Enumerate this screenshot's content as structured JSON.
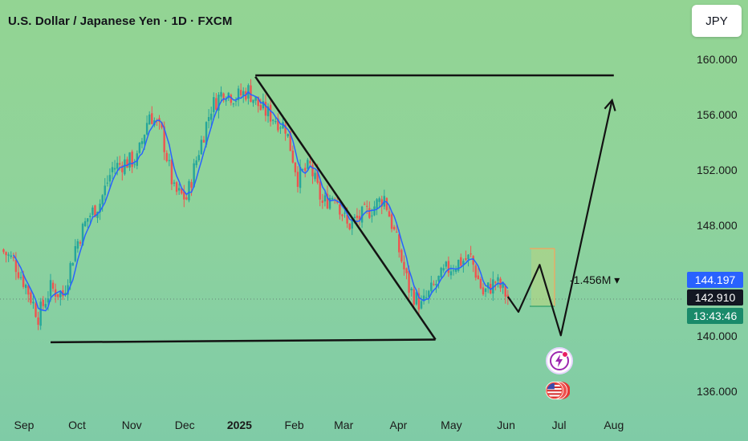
{
  "header": {
    "title": "U.S. Dollar / Japanese Yen · 1D · FXCM"
  },
  "currency_button": {
    "label": "JPY"
  },
  "price_axis": {
    "ticks": [
      "160.000",
      "156.000",
      "152.000",
      "148.000",
      "140.000",
      "136.000"
    ]
  },
  "time_axis": {
    "ticks": [
      {
        "label": "Sep",
        "bold": false
      },
      {
        "label": "Oct",
        "bold": false
      },
      {
        "label": "Nov",
        "bold": false
      },
      {
        "label": "Dec",
        "bold": false
      },
      {
        "label": "2025",
        "bold": true
      },
      {
        "label": "Feb",
        "bold": false
      },
      {
        "label": "Mar",
        "bold": false
      },
      {
        "label": "Apr",
        "bold": false
      },
      {
        "label": "May",
        "bold": false
      },
      {
        "label": "Jun",
        "bold": false
      },
      {
        "label": "Jul",
        "bold": false
      },
      {
        "label": "Aug",
        "bold": false
      }
    ]
  },
  "tags": {
    "ma": {
      "text": "144.197",
      "color": "#2962ff"
    },
    "last": {
      "text": "142.910",
      "color": "#131722"
    },
    "timer": {
      "text": "13:43:46",
      "color": "#1a8a6a"
    }
  },
  "volume_label": "-1.456M ▾",
  "colors": {
    "up": "#26a69a",
    "down": "#ef5350",
    "ma": "#2962ff",
    "drawing": "#131313",
    "projection_box": "#f7a35c"
  },
  "icons": [
    "lightning-event-icon",
    "us-flag-event-icon"
  ],
  "chart_data": {
    "type": "candlestick",
    "title": "U.S. Dollar / Japanese Yen · 1D · FXCM",
    "xlabel": "",
    "ylabel": "",
    "ylim": [
      134.6,
      162.3
    ],
    "x_ticks": [
      "Sep",
      "Oct",
      "Nov",
      "Dec",
      "2025",
      "Feb",
      "Mar",
      "Apr",
      "May",
      "Jun",
      "Jul",
      "Aug"
    ],
    "y_ticks": [
      160,
      156,
      152,
      148,
      140,
      136
    ],
    "grid": false,
    "last_price": 142.91,
    "moving_average_value": 144.197,
    "closes": [
      {
        "date": "2024-08-19",
        "close": 146.3
      },
      {
        "date": "2024-08-26",
        "close": 145.5
      },
      {
        "date": "2024-09-02",
        "close": 143.7
      },
      {
        "date": "2024-09-09",
        "close": 141.5
      },
      {
        "date": "2024-09-16",
        "close": 143.5
      },
      {
        "date": "2024-09-23",
        "close": 143.0
      },
      {
        "date": "2024-09-30",
        "close": 146.5
      },
      {
        "date": "2024-10-07",
        "close": 148.6
      },
      {
        "date": "2024-10-14",
        "close": 149.7
      },
      {
        "date": "2024-10-21",
        "close": 152.2
      },
      {
        "date": "2024-10-28",
        "close": 152.6
      },
      {
        "date": "2024-11-04",
        "close": 152.8
      },
      {
        "date": "2024-11-11",
        "close": 156.2
      },
      {
        "date": "2024-11-18",
        "close": 154.7
      },
      {
        "date": "2024-11-25",
        "close": 150.5
      },
      {
        "date": "2024-12-02",
        "close": 150.0
      },
      {
        "date": "2024-12-09",
        "close": 153.5
      },
      {
        "date": "2024-12-16",
        "close": 156.6
      },
      {
        "date": "2024-12-23",
        "close": 157.8
      },
      {
        "date": "2024-12-30",
        "close": 157.3
      },
      {
        "date": "2025-01-06",
        "close": 157.8
      },
      {
        "date": "2025-01-13",
        "close": 156.5
      },
      {
        "date": "2025-01-20",
        "close": 155.9
      },
      {
        "date": "2025-01-27",
        "close": 155.2
      },
      {
        "date": "2025-02-03",
        "close": 151.5
      },
      {
        "date": "2025-02-10",
        "close": 152.3
      },
      {
        "date": "2025-02-17",
        "close": 149.6
      },
      {
        "date": "2025-02-24",
        "close": 150.4
      },
      {
        "date": "2025-03-03",
        "close": 148.0
      },
      {
        "date": "2025-03-10",
        "close": 148.6
      },
      {
        "date": "2025-03-17",
        "close": 149.3
      },
      {
        "date": "2025-03-24",
        "close": 150.1
      },
      {
        "date": "2025-03-31",
        "close": 146.9
      },
      {
        "date": "2025-04-07",
        "close": 143.5
      },
      {
        "date": "2025-04-14",
        "close": 142.2
      },
      {
        "date": "2025-04-21",
        "close": 143.6
      },
      {
        "date": "2025-04-28",
        "close": 144.8
      },
      {
        "date": "2025-05-05",
        "close": 145.4
      },
      {
        "date": "2025-05-12",
        "close": 145.7
      },
      {
        "date": "2025-05-19",
        "close": 143.1
      },
      {
        "date": "2025-05-26",
        "close": 144.0
      },
      {
        "date": "2025-06-02",
        "close": 142.9
      }
    ],
    "drawings": {
      "resistance_line": [
        {
          "date": "2025-01-10",
          "price": 158.9
        },
        {
          "date": "2025-08-01",
          "price": 158.9
        }
      ],
      "support_line": [
        {
          "date": "2024-09-16",
          "price": 139.6
        },
        {
          "date": "2025-04-22",
          "price": 139.8
        }
      ],
      "descending_trendline": [
        {
          "date": "2025-01-10",
          "price": 158.8
        },
        {
          "date": "2025-04-22",
          "price": 139.8
        }
      ],
      "projected_path": [
        {
          "date": "2025-06-02",
          "price": 142.9
        },
        {
          "date": "2025-06-08",
          "price": 141.8
        },
        {
          "date": "2025-06-20",
          "price": 145.2
        },
        {
          "date": "2025-07-02",
          "price": 140.1
        },
        {
          "date": "2025-07-31",
          "price": 157.1
        }
      ]
    }
  }
}
